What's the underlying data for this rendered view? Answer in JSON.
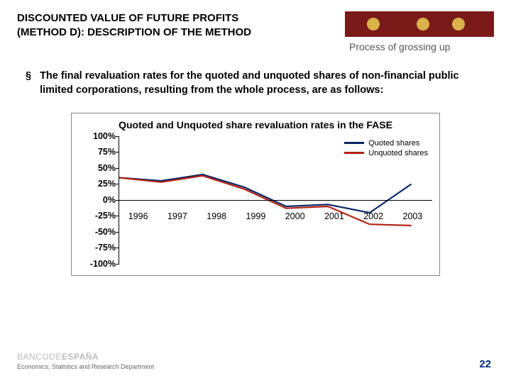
{
  "header": {
    "title_line1": "DISCOUNTED VALUE OF FUTURE PROFITS",
    "title_line2": "(METHOD D): DESCRIPTION OF THE METHOD",
    "subtitle": "Process of grossing up"
  },
  "body": {
    "bullet_char": "§",
    "text": "The final revaluation rates for the quoted and unquoted shares of non-financial public limited corporations, resulting from the whole process, are as follows:"
  },
  "chart": {
    "type": "line",
    "title": "Quoted and Unquoted share revaluation rates in the FASE",
    "xlim": [
      1996,
      2003.5
    ],
    "ylim": [
      -100,
      100
    ],
    "ytick_step": 25,
    "y_ticks": [
      "100%",
      "75%",
      "50%",
      "25%",
      "0%",
      "-25%",
      "-50%",
      "-75%",
      "-100%"
    ],
    "x_ticks": [
      "1996",
      "1997",
      "1998",
      "1999",
      "2000",
      "2001",
      "2002",
      "2003"
    ],
    "background_color": "#ffffff",
    "axis_color": "#000000",
    "line_width": 2.2,
    "series": [
      {
        "name": "Quoted shares",
        "color": "#0a2766",
        "x": [
          1996,
          1997,
          1998,
          1999,
          2000,
          2001,
          2002,
          2003
        ],
        "y": [
          35,
          30,
          40,
          20,
          -10,
          -7,
          -20,
          25
        ]
      },
      {
        "name": "Unquoted shares",
        "color": "#b22516",
        "x": [
          1996,
          1997,
          1998,
          1999,
          2000,
          2001,
          2002,
          2003
        ],
        "y": [
          35,
          28,
          38,
          17,
          -13,
          -10,
          -38,
          -40
        ]
      }
    ],
    "legend_position": "top-right",
    "title_fontsize": 14,
    "tick_fontsize": 12.5
  },
  "footer": {
    "bank_logo": "BANCO DE ESPAÑA",
    "department": "Economics, Statistics and Research Department",
    "page_number": "22"
  }
}
